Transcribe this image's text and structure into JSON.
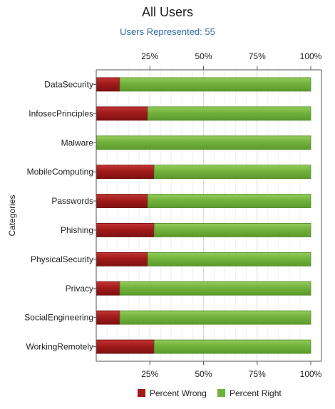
{
  "chart_data": {
    "type": "bar",
    "orientation": "horizontal",
    "stacked": true,
    "title": "All Users",
    "subtitle": "Users Represented: 55",
    "ylabel": "Categories",
    "xlabel": "",
    "xlim": [
      0,
      100
    ],
    "x_ticks": [
      "25%",
      "50%",
      "75%",
      "100%"
    ],
    "x_tick_values": [
      25,
      50,
      75,
      100
    ],
    "grid": true,
    "legend_position": "bottom",
    "categories": [
      "DataSecurity",
      "InfosecPrinciples",
      "Malware",
      "MobileComputing",
      "Passwords",
      "Phishing",
      "PhysicalSecurity",
      "Privacy",
      "SocialEngineering",
      "WorkingRemotely"
    ],
    "series": [
      {
        "name": "Percent Wrong",
        "color": "#a11b1b",
        "values": [
          11,
          24,
          0,
          27,
          24,
          27,
          24,
          11,
          11,
          27
        ]
      },
      {
        "name": "Percent Right",
        "color": "#72b23c",
        "values": [
          89,
          76,
          100,
          73,
          76,
          73,
          76,
          89,
          89,
          73
        ]
      }
    ],
    "subtitle_color": "#2e6da4"
  }
}
